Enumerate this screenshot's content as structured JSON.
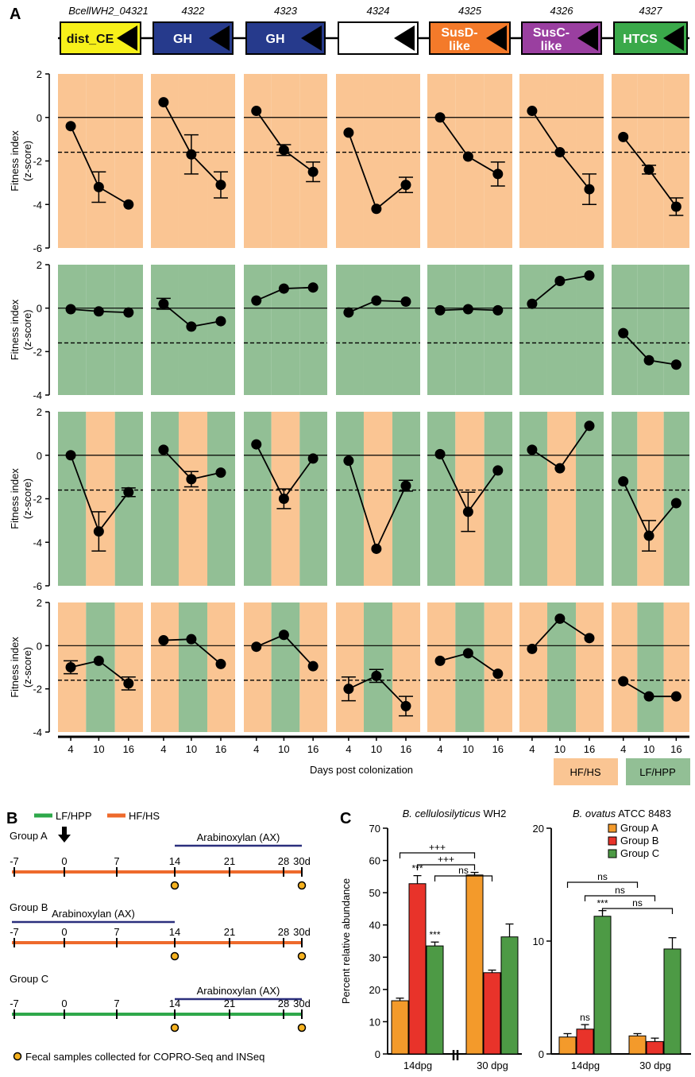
{
  "panel_labels": {
    "a": "A",
    "b": "B",
    "c": "C"
  },
  "operon": {
    "locus_tags": [
      "BcellWH2_04321",
      "4322",
      "4323",
      "4324",
      "4325",
      "4326",
      "4327"
    ],
    "genes": [
      {
        "lines": [
          "dist_CE"
        ],
        "fill": "#f7f01a",
        "text_color": "#111111"
      },
      {
        "lines": [
          "GH"
        ],
        "fill": "#263a8c",
        "text_color": "#ffffff"
      },
      {
        "lines": [
          "GH"
        ],
        "fill": "#263a8c",
        "text_color": "#ffffff"
      },
      {
        "lines": [
          ""
        ],
        "fill": "#ffffff",
        "text_color": "#111111"
      },
      {
        "lines": [
          "SusD-",
          "like"
        ],
        "fill": "#f47a2a",
        "text_color": "#ffffff"
      },
      {
        "lines": [
          "SusC-",
          "like"
        ],
        "fill": "#9a3fa0",
        "text_color": "#ffffff"
      },
      {
        "lines": [
          "HTCS"
        ],
        "fill": "#3aa94a",
        "text_color": "#ffffff"
      }
    ]
  },
  "colors": {
    "hfhs": "#fac593",
    "lfhpp": "#92bf95"
  },
  "panel_a": {
    "ylabel_line1": "Fitness index",
    "ylabel_line2": "(z-score)",
    "xlabel": "Days post colonization",
    "x_tick_labels": [
      "4",
      "10",
      "16"
    ],
    "legend": {
      "hfhs": "HF/HS",
      "lfhpp": "LF/HPP"
    }
  },
  "chart_data": [
    {
      "type": "line",
      "panel": "A-row1",
      "ylim": [
        -6,
        2
      ],
      "yticks": [
        2,
        0,
        -2,
        -4,
        -6
      ],
      "x": [
        4,
        10,
        16
      ],
      "background": [
        "HF/HS",
        "HF/HS",
        "HF/HS"
      ],
      "threshold": -1.6,
      "series": [
        {
          "gene": "BcellWH2_04321",
          "values": [
            -0.4,
            -3.2,
            -4.0
          ],
          "errors": [
            0,
            0.7,
            0
          ]
        },
        {
          "gene": "4322",
          "values": [
            0.7,
            -1.7,
            -3.1
          ],
          "errors": [
            0,
            0.9,
            0.6
          ]
        },
        {
          "gene": "4323",
          "values": [
            0.3,
            -1.5,
            -2.5
          ],
          "errors": [
            0,
            0.25,
            0.45
          ]
        },
        {
          "gene": "4324",
          "values": [
            -0.7,
            -4.2,
            -3.1
          ],
          "errors": [
            0,
            0,
            0.35
          ]
        },
        {
          "gene": "4325",
          "values": [
            0.0,
            -1.8,
            -2.6
          ],
          "errors": [
            0,
            0,
            0.55
          ]
        },
        {
          "gene": "4326",
          "values": [
            0.3,
            -1.6,
            -3.3
          ],
          "errors": [
            0,
            0,
            0.7
          ]
        },
        {
          "gene": "4327",
          "values": [
            -0.9,
            -2.4,
            -4.1
          ],
          "errors": [
            0,
            0.2,
            0.4
          ]
        }
      ]
    },
    {
      "type": "line",
      "panel": "A-row2",
      "ylim": [
        -4,
        2
      ],
      "yticks": [
        2,
        0,
        -2,
        -4
      ],
      "x": [
        4,
        10,
        16
      ],
      "background": [
        "LF/HPP",
        "LF/HPP",
        "LF/HPP"
      ],
      "threshold": -1.6,
      "series": [
        {
          "gene": "BcellWH2_04321",
          "values": [
            -0.05,
            -0.15,
            -0.2
          ],
          "errors": [
            0,
            0,
            0
          ]
        },
        {
          "gene": "4322",
          "values": [
            0.2,
            -0.85,
            -0.6
          ],
          "errors": [
            0.25,
            0,
            0
          ]
        },
        {
          "gene": "4323",
          "values": [
            0.35,
            0.9,
            0.95
          ],
          "errors": [
            0,
            0,
            0
          ]
        },
        {
          "gene": "4324",
          "values": [
            -0.2,
            0.35,
            0.3
          ],
          "errors": [
            0,
            0,
            0
          ]
        },
        {
          "gene": "4325",
          "values": [
            -0.1,
            -0.05,
            -0.1
          ],
          "errors": [
            0,
            0,
            0
          ]
        },
        {
          "gene": "4326",
          "values": [
            0.2,
            1.25,
            1.5
          ],
          "errors": [
            0,
            0,
            0
          ]
        },
        {
          "gene": "4327",
          "values": [
            -1.15,
            -2.4,
            -2.6
          ],
          "errors": [
            0,
            0,
            0
          ]
        }
      ]
    },
    {
      "type": "line",
      "panel": "A-row3",
      "ylim": [
        -6,
        2
      ],
      "yticks": [
        2,
        0,
        -2,
        -4,
        -6
      ],
      "x": [
        4,
        10,
        16
      ],
      "background": [
        "LF/HPP",
        "HF/HS",
        "LF/HPP"
      ],
      "threshold": -1.6,
      "series": [
        {
          "gene": "BcellWH2_04321",
          "values": [
            0.0,
            -3.5,
            -1.7
          ],
          "errors": [
            0,
            0.9,
            0.2
          ]
        },
        {
          "gene": "4322",
          "values": [
            0.25,
            -1.1,
            -0.8
          ],
          "errors": [
            0,
            0.35,
            0
          ]
        },
        {
          "gene": "4323",
          "values": [
            0.5,
            -2.0,
            -0.15
          ],
          "errors": [
            0,
            0.45,
            0
          ]
        },
        {
          "gene": "4324",
          "values": [
            -0.25,
            -4.3,
            -1.4
          ],
          "errors": [
            0,
            0,
            0.25
          ]
        },
        {
          "gene": "4325",
          "values": [
            0.05,
            -2.6,
            -0.7
          ],
          "errors": [
            0,
            0.9,
            0
          ]
        },
        {
          "gene": "4326",
          "values": [
            0.25,
            -0.6,
            1.35
          ],
          "errors": [
            0,
            0,
            0
          ]
        },
        {
          "gene": "4327",
          "values": [
            -1.2,
            -3.7,
            -2.2
          ],
          "errors": [
            0,
            0.7,
            0
          ]
        }
      ]
    },
    {
      "type": "line",
      "panel": "A-row4",
      "ylim": [
        -4,
        2
      ],
      "yticks": [
        2,
        0,
        -2,
        -4
      ],
      "x": [
        4,
        10,
        16
      ],
      "background": [
        "HF/HS",
        "LF/HPP",
        "HF/HS"
      ],
      "threshold": -1.6,
      "series": [
        {
          "gene": "BcellWH2_04321",
          "values": [
            -1.0,
            -0.7,
            -1.75
          ],
          "errors": [
            0.3,
            0,
            0.3
          ]
        },
        {
          "gene": "4322",
          "values": [
            0.25,
            0.3,
            -0.85
          ],
          "errors": [
            0,
            0,
            0
          ]
        },
        {
          "gene": "4323",
          "values": [
            -0.05,
            0.5,
            -0.95
          ],
          "errors": [
            0,
            0,
            0
          ]
        },
        {
          "gene": "4324",
          "values": [
            -2.0,
            -1.4,
            -2.8
          ],
          "errors": [
            0.55,
            0.3,
            0.45
          ]
        },
        {
          "gene": "4325",
          "values": [
            -0.7,
            -0.35,
            -1.3
          ],
          "errors": [
            0,
            0,
            0
          ]
        },
        {
          "gene": "4326",
          "values": [
            -0.15,
            1.25,
            0.35
          ],
          "errors": [
            0,
            0,
            0
          ]
        },
        {
          "gene": "4327",
          "values": [
            -1.65,
            -2.35,
            -2.35
          ],
          "errors": [
            0,
            0,
            0
          ]
        }
      ]
    },
    {
      "type": "bar",
      "panel": "C-left",
      "title_italic": "B. cellulosilyticus",
      "title_rest": " WH2",
      "ylabel": "Percent relative abundance",
      "ylim": [
        0,
        70
      ],
      "yticks": [
        0,
        10,
        20,
        30,
        40,
        50,
        60,
        70
      ],
      "categories": [
        "14dpg",
        "30 dpg"
      ],
      "series": [
        {
          "name": "Group A",
          "color": "#f39a2b",
          "values": [
            16.5,
            55.5
          ],
          "errors": [
            0.8,
            0.8
          ]
        },
        {
          "name": "Group B",
          "color": "#e8332a",
          "values": [
            52.8,
            25.2
          ],
          "errors": [
            2.5,
            0.8
          ]
        },
        {
          "name": "Group C",
          "color": "#4d9a45",
          "values": [
            33.5,
            36.3
          ],
          "errors": [
            1.2,
            4.0
          ]
        }
      ],
      "bar_labels": [
        [
          "",
          "***",
          "***"
        ],
        [
          "",
          "",
          ""
        ]
      ],
      "comparisons": [
        "+++",
        "+++",
        "ns"
      ]
    },
    {
      "type": "bar",
      "panel": "C-right",
      "title_italic": "B. ovatus",
      "title_rest": " ATCC 8483",
      "ylim": [
        0,
        20
      ],
      "yticks": [
        0,
        10,
        20
      ],
      "categories": [
        "14dpg",
        "30 dpg"
      ],
      "series": [
        {
          "name": "Group A",
          "color": "#f39a2b",
          "values": [
            1.5,
            1.6
          ],
          "errors": [
            0.3,
            0.2
          ]
        },
        {
          "name": "Group B",
          "color": "#e8332a",
          "values": [
            2.2,
            1.1
          ],
          "errors": [
            0.4,
            0.3
          ]
        },
        {
          "name": "Group C",
          "color": "#4d9a45",
          "values": [
            12.2,
            9.3
          ],
          "errors": [
            0.5,
            1.0
          ]
        }
      ],
      "bar_labels": [
        [
          "",
          "ns",
          "***"
        ],
        [
          "",
          "",
          ""
        ]
      ],
      "comparisons": [
        "ns",
        "ns",
        "ns"
      ],
      "legend": [
        "Group A",
        "Group B",
        "Group C"
      ]
    }
  ],
  "panel_b": {
    "legend": {
      "lfhpp": "LF/HPP",
      "hfhs": "HF/HS",
      "lfhpp_color": "#2ea84a",
      "hfhs_color": "#ee6a2c"
    },
    "tick_labels": [
      "-7",
      "0",
      "7",
      "14",
      "21",
      "28",
      "30d"
    ],
    "arabinoxylan_label": "Arabinoxylan (AX)",
    "ax_bar_color": "#2b2f7d",
    "footnote": "Fecal samples collected for COPRO-Seq and INSeq",
    "dot_color": "#f6b21f",
    "groups": [
      {
        "label": "Group A",
        "diet_color": "#ee6a2c",
        "ax_label": "Arabinoxylan (AX)"
      },
      {
        "label": "Group B",
        "diet_color": "#ee6a2c",
        "ax_label": "Arabinoxylan (AX)"
      },
      {
        "label": "Group C",
        "diet_color": "#2ea84a",
        "ax_label": "Arabinoxylan (AX)"
      }
    ]
  }
}
